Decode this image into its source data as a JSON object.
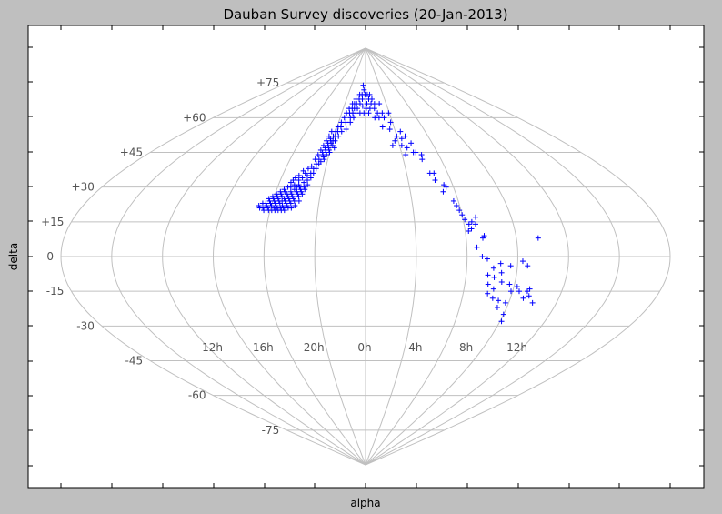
{
  "chart_data": {
    "type": "scatter",
    "title": "Dauban Survey discoveries (20-Jan-2013)",
    "xlabel": "alpha",
    "ylabel": "delta",
    "projection": "sinusoidal",
    "grid": true,
    "marker": "+",
    "marker_color": "#0000ff",
    "grid_color": "#c0c0c0",
    "xlim": [
      -180,
      180
    ],
    "ylim": [
      -90,
      90
    ],
    "lon_lines": [
      -180,
      -150,
      -120,
      -90,
      -60,
      -30,
      0,
      30,
      60,
      90,
      120,
      150,
      180
    ],
    "lat_lines": [
      -75,
      -60,
      -45,
      -30,
      -15,
      0,
      15,
      30,
      45,
      60,
      75
    ],
    "lat_tick_labels": [
      {
        "value": 75,
        "label": "+75"
      },
      {
        "value": 60,
        "label": "+60"
      },
      {
        "value": 45,
        "label": "+45"
      },
      {
        "value": 30,
        "label": "+30"
      },
      {
        "value": 15,
        "label": "+15"
      },
      {
        "value": 0,
        "label": "0"
      },
      {
        "value": -15,
        "label": "-15"
      },
      {
        "value": -30,
        "label": "-30"
      },
      {
        "value": -45,
        "label": "-45"
      },
      {
        "value": -60,
        "label": "-60"
      },
      {
        "value": -75,
        "label": "-75"
      }
    ],
    "lon_tick_labels": [
      {
        "value": -90,
        "label": "12h"
      },
      {
        "value": -60,
        "label": "16h"
      },
      {
        "value": -30,
        "label": "20h"
      },
      {
        "value": 0,
        "label": "0h"
      },
      {
        "value": 30,
        "label": "4h"
      },
      {
        "value": 60,
        "label": "8h"
      },
      {
        "value": 90,
        "label": "12h"
      }
    ],
    "points": [
      [
        -68,
        22
      ],
      [
        -67,
        21
      ],
      [
        -66,
        23
      ],
      [
        -65,
        21
      ],
      [
        -64,
        20
      ],
      [
        -64,
        23
      ],
      [
        -63,
        22
      ],
      [
        -63,
        25
      ],
      [
        -62,
        21
      ],
      [
        -62,
        24
      ],
      [
        -61,
        20
      ],
      [
        -61,
        23
      ],
      [
        -61,
        26
      ],
      [
        -60,
        22
      ],
      [
        -60,
        25
      ],
      [
        -59,
        20
      ],
      [
        -59,
        24
      ],
      [
        -59,
        27
      ],
      [
        -58,
        21
      ],
      [
        -58,
        23
      ],
      [
        -58,
        26
      ],
      [
        -57,
        20
      ],
      [
        -57,
        22
      ],
      [
        -57,
        25
      ],
      [
        -57,
        28
      ],
      [
        -56,
        21
      ],
      [
        -56,
        24
      ],
      [
        -56,
        27
      ],
      [
        -55,
        20
      ],
      [
        -55,
        23
      ],
      [
        -55,
        26
      ],
      [
        -55,
        29
      ],
      [
        -54,
        21
      ],
      [
        -54,
        24
      ],
      [
        -54,
        28
      ],
      [
        -53,
        20
      ],
      [
        -53,
        22
      ],
      [
        -53,
        25
      ],
      [
        -53,
        30
      ],
      [
        -52,
        21
      ],
      [
        -52,
        24
      ],
      [
        -52,
        27
      ],
      [
        -52,
        32
      ],
      [
        -51,
        20
      ],
      [
        -51,
        23
      ],
      [
        -51,
        26
      ],
      [
        -51,
        30
      ],
      [
        -51,
        33
      ],
      [
        -50,
        22
      ],
      [
        -50,
        25
      ],
      [
        -50,
        28
      ],
      [
        -50,
        34
      ],
      [
        -49,
        21
      ],
      [
        -49,
        24
      ],
      [
        -49,
        27
      ],
      [
        -49,
        31
      ],
      [
        -48,
        23
      ],
      [
        -48,
        26
      ],
      [
        -48,
        29
      ],
      [
        -48,
        35
      ],
      [
        -47,
        21
      ],
      [
        -47,
        25
      ],
      [
        -47,
        30
      ],
      [
        -47,
        33
      ],
      [
        -46,
        24
      ],
      [
        -46,
        28
      ],
      [
        -46,
        31
      ],
      [
        -46,
        37
      ],
      [
        -45,
        22
      ],
      [
        -45,
        27
      ],
      [
        -45,
        30
      ],
      [
        -45,
        34
      ],
      [
        -44,
        26
      ],
      [
        -44,
        29
      ],
      [
        -44,
        36
      ],
      [
        -43,
        24
      ],
      [
        -43,
        28
      ],
      [
        -43,
        32
      ],
      [
        -43,
        38
      ],
      [
        -42,
        27
      ],
      [
        -42,
        30
      ],
      [
        -42,
        35
      ],
      [
        -41,
        29
      ],
      [
        -41,
        33
      ],
      [
        -41,
        39
      ],
      [
        -40,
        31
      ],
      [
        -40,
        36
      ],
      [
        -40,
        42
      ],
      [
        -39,
        34
      ],
      [
        -39,
        38
      ],
      [
        -39,
        44
      ],
      [
        -38,
        36
      ],
      [
        -38,
        40
      ],
      [
        -38,
        46
      ],
      [
        -37,
        38
      ],
      [
        -37,
        42
      ],
      [
        -37,
        48
      ],
      [
        -36,
        40
      ],
      [
        -36,
        45
      ],
      [
        -36,
        50
      ],
      [
        -35,
        41
      ],
      [
        -35,
        44
      ],
      [
        -35,
        47
      ],
      [
        -35,
        52
      ],
      [
        -34,
        43
      ],
      [
        -34,
        46
      ],
      [
        -34,
        49
      ],
      [
        -34,
        54
      ],
      [
        -33,
        42
      ],
      [
        -33,
        45
      ],
      [
        -33,
        48
      ],
      [
        -33,
        51
      ],
      [
        -32,
        44
      ],
      [
        -32,
        47
      ],
      [
        -32,
        50
      ],
      [
        -31,
        46
      ],
      [
        -31,
        49
      ],
      [
        -31,
        52
      ],
      [
        -30,
        45
      ],
      [
        -30,
        50
      ],
      [
        -30,
        54
      ],
      [
        -29,
        48
      ],
      [
        -29,
        52
      ],
      [
        -29,
        56
      ],
      [
        -28,
        50
      ],
      [
        -28,
        54
      ],
      [
        -27,
        47
      ],
      [
        -27,
        58
      ],
      [
        -26,
        52
      ],
      [
        -26,
        56
      ],
      [
        -25,
        60
      ],
      [
        -24,
        54
      ],
      [
        -24,
        62
      ],
      [
        -22,
        58
      ],
      [
        -22,
        64
      ],
      [
        -20,
        55
      ],
      [
        -20,
        62
      ],
      [
        -19,
        66
      ],
      [
        -18,
        60
      ],
      [
        -18,
        64
      ],
      [
        -17,
        58
      ],
      [
        -16,
        62
      ],
      [
        -16,
        66
      ],
      [
        -15,
        64
      ],
      [
        -15,
        68
      ],
      [
        -14,
        60
      ],
      [
        -13,
        66
      ],
      [
        -12,
        62
      ],
      [
        -11,
        64
      ],
      [
        -10,
        68
      ],
      [
        -10,
        70
      ],
      [
        -8,
        66
      ],
      [
        -7,
        62
      ],
      [
        -6,
        70
      ],
      [
        -5,
        68
      ],
      [
        -5,
        74
      ],
      [
        -4,
        65
      ],
      [
        -3,
        72
      ],
      [
        -2,
        62
      ],
      [
        -1,
        70
      ],
      [
        1,
        64
      ],
      [
        2,
        66
      ],
      [
        3,
        70
      ],
      [
        4,
        62
      ],
      [
        5,
        68
      ],
      [
        6,
        64
      ],
      [
        7,
        70
      ],
      [
        8,
        66
      ],
      [
        10,
        68
      ],
      [
        11,
        60
      ],
      [
        12,
        64
      ],
      [
        13,
        66
      ],
      [
        15,
        62
      ],
      [
        16,
        60
      ],
      [
        18,
        56
      ],
      [
        20,
        66
      ],
      [
        21,
        62
      ],
      [
        22,
        60
      ],
      [
        24,
        48
      ],
      [
        25,
        55
      ],
      [
        27,
        50
      ],
      [
        28,
        58
      ],
      [
        29,
        62
      ],
      [
        30,
        52
      ],
      [
        32,
        48
      ],
      [
        33,
        44
      ],
      [
        34,
        51
      ],
      [
        35,
        54
      ],
      [
        36,
        47
      ],
      [
        38,
        52
      ],
      [
        40,
        45
      ],
      [
        41,
        49
      ],
      [
        42,
        45
      ],
      [
        45,
        42
      ],
      [
        46,
        44
      ],
      [
        47,
        36
      ],
      [
        49,
        33
      ],
      [
        50,
        36
      ],
      [
        52,
        28
      ],
      [
        54,
        31
      ],
      [
        55,
        30
      ],
      [
        57,
        24
      ],
      [
        58,
        22
      ],
      [
        59,
        20
      ],
      [
        60,
        18
      ],
      [
        61,
        16
      ],
      [
        62,
        11
      ],
      [
        63,
        14
      ],
      [
        64,
        12
      ],
      [
        65,
        15
      ],
      [
        66,
        4
      ],
      [
        67,
        14
      ],
      [
        68,
        17
      ],
      [
        69,
        0
      ],
      [
        70,
        8
      ],
      [
        71,
        9
      ],
      [
        72,
        -1
      ],
      [
        73,
        -8
      ],
      [
        74,
        -12
      ],
      [
        75,
        -16
      ],
      [
        76,
        -5
      ],
      [
        77,
        -9
      ],
      [
        78,
        -14
      ],
      [
        79,
        -18
      ],
      [
        80,
        -3
      ],
      [
        81,
        -7
      ],
      [
        82,
        -11
      ],
      [
        83,
        -19
      ],
      [
        84,
        -22
      ],
      [
        86,
        -4
      ],
      [
        87,
        -12
      ],
      [
        88,
        -20
      ],
      [
        89,
        -15
      ],
      [
        90,
        -25
      ],
      [
        91,
        -28
      ],
      [
        92,
        -13
      ],
      [
        93,
        -2
      ],
      [
        94,
        -15
      ],
      [
        96,
        -4
      ],
      [
        98,
        -18
      ],
      [
        99,
        -15
      ],
      [
        100,
        -14
      ],
      [
        101,
        -17
      ],
      [
        103,
        8
      ],
      [
        105,
        -20
      ]
    ]
  }
}
